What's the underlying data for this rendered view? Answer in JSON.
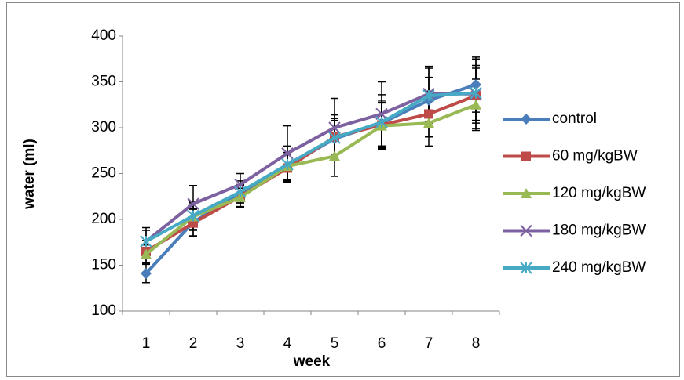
{
  "chart_data": {
    "type": "line",
    "y_label": "water (ml)",
    "x_label": "week",
    "categories": [
      "1",
      "2",
      "3",
      "4",
      "5",
      "6",
      "7",
      "8"
    ],
    "ylim": [
      100,
      400
    ],
    "yticks": [
      100,
      150,
      200,
      250,
      300,
      350,
      400
    ],
    "grid": false,
    "legend": "right",
    "series": [
      {
        "name": "control",
        "color": "#4a7ebb",
        "marker": "diamond",
        "values": [
          141,
          197,
          228,
          258,
          288,
          305,
          330,
          347
        ],
        "errors": [
          10,
          15,
          10,
          15,
          20,
          25,
          25,
          30
        ]
      },
      {
        "name": "60 mg/kgBW",
        "color": "#be4b48",
        "marker": "square",
        "values": [
          165,
          196,
          225,
          256,
          290,
          303,
          315,
          335
        ],
        "errors": [
          12,
          15,
          12,
          15,
          20,
          25,
          25,
          30
        ]
      },
      {
        "name": "120 mg/kgBW",
        "color": "#98b954",
        "marker": "triangle",
        "values": [
          162,
          203,
          224,
          258,
          269,
          302,
          305,
          325
        ],
        "errors": [
          10,
          15,
          10,
          15,
          22,
          25,
          25,
          28
        ]
      },
      {
        "name": "180 mg/kgBW",
        "color": "#7d60a0",
        "marker": "x",
        "values": [
          176,
          217,
          238,
          272,
          300,
          315,
          337,
          337
        ],
        "errors": [
          15,
          20,
          12,
          30,
          32,
          35,
          30,
          38
        ]
      },
      {
        "name": "240 mg/kgBW",
        "color": "#46aac5",
        "marker": "star",
        "values": [
          176,
          204,
          230,
          260,
          289,
          306,
          335,
          338
        ],
        "errors": [
          12,
          15,
          12,
          20,
          25,
          30,
          30,
          30
        ]
      }
    ]
  }
}
